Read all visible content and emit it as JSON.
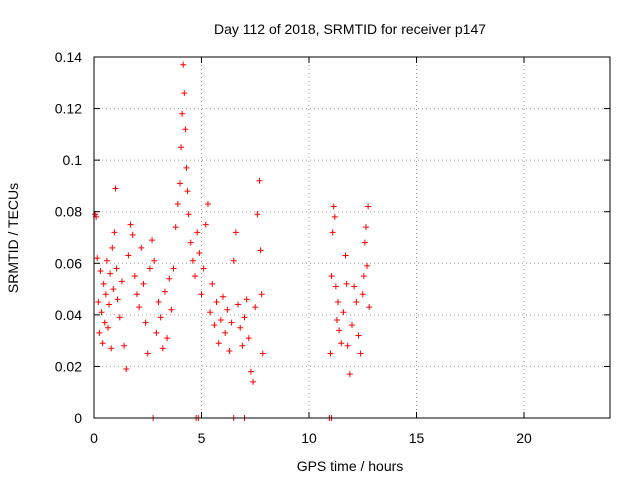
{
  "colors": {
    "series": "#ff0000",
    "grid": "#a0a0a0",
    "axis": "#000000"
  },
  "chart_data": {
    "type": "scatter",
    "title": "Day 112 of 2018, SRMTID for receiver p147",
    "xlabel": "GPS time / hours",
    "ylabel": "SRMTID / TECUs",
    "xlim": [
      0,
      24
    ],
    "ylim": [
      0,
      0.14
    ],
    "xticks": [
      0,
      5,
      10,
      15,
      20
    ],
    "xtick_labels": [
      "0",
      "5",
      "10",
      "15",
      "20"
    ],
    "yticks": [
      0,
      0.02,
      0.04,
      0.06,
      0.08,
      0.1,
      0.12,
      0.14
    ],
    "ytick_labels": [
      "0",
      "0.02",
      "0.04",
      "0.06",
      "0.08",
      "0.1",
      "0.12",
      "0.14"
    ],
    "grid": true,
    "marker": "plus",
    "series": [
      {
        "name": "SRMTID",
        "points": [
          [
            0.05,
            0.079
          ],
          [
            0.1,
            0.078
          ],
          [
            0.15,
            0.062
          ],
          [
            0.2,
            0.045
          ],
          [
            0.25,
            0.033
          ],
          [
            0.3,
            0.057
          ],
          [
            0.35,
            0.041
          ],
          [
            0.4,
            0.029
          ],
          [
            0.45,
            0.052
          ],
          [
            0.5,
            0.037
          ],
          [
            0.55,
            0.048
          ],
          [
            0.6,
            0.061
          ],
          [
            0.65,
            0.035
          ],
          [
            0.7,
            0.044
          ],
          [
            0.75,
            0.056
          ],
          [
            0.8,
            0.027
          ],
          [
            0.85,
            0.066
          ],
          [
            0.9,
            0.05
          ],
          [
            0.95,
            0.072
          ],
          [
            1.0,
            0.089
          ],
          [
            1.05,
            0.058
          ],
          [
            1.1,
            0.046
          ],
          [
            1.2,
            0.039
          ],
          [
            1.3,
            0.053
          ],
          [
            1.4,
            0.028
          ],
          [
            1.5,
            0.019
          ],
          [
            1.6,
            0.063
          ],
          [
            1.7,
            0.075
          ],
          [
            1.8,
            0.071
          ],
          [
            1.9,
            0.055
          ],
          [
            2.0,
            0.048
          ],
          [
            2.1,
            0.043
          ],
          [
            2.2,
            0.066
          ],
          [
            2.3,
            0.052
          ],
          [
            2.4,
            0.037
          ],
          [
            2.5,
            0.025
          ],
          [
            2.6,
            0.058
          ],
          [
            2.7,
            0.069
          ],
          [
            2.8,
            0.061
          ],
          [
            2.9,
            0.033
          ],
          [
            3.0,
            0.045
          ],
          [
            3.1,
            0.039
          ],
          [
            3.2,
            0.027
          ],
          [
            3.3,
            0.049
          ],
          [
            3.4,
            0.031
          ],
          [
            3.5,
            0.054
          ],
          [
            3.6,
            0.042
          ],
          [
            3.7,
            0.058
          ],
          [
            3.8,
            0.074
          ],
          [
            3.9,
            0.083
          ],
          [
            4.0,
            0.091
          ],
          [
            4.05,
            0.105
          ],
          [
            4.1,
            0.118
          ],
          [
            4.15,
            0.137
          ],
          [
            4.2,
            0.126
          ],
          [
            4.25,
            0.112
          ],
          [
            4.3,
            0.097
          ],
          [
            4.35,
            0.088
          ],
          [
            4.4,
            0.079
          ],
          [
            4.5,
            0.068
          ],
          [
            4.6,
            0.061
          ],
          [
            4.7,
            0.055
          ],
          [
            4.8,
            0.072
          ],
          [
            4.9,
            0.064
          ],
          [
            5.0,
            0.048
          ],
          [
            5.1,
            0.058
          ],
          [
            5.2,
            0.075
          ],
          [
            5.3,
            0.083
          ],
          [
            5.4,
            0.041
          ],
          [
            5.5,
            0.052
          ],
          [
            5.6,
            0.036
          ],
          [
            5.7,
            0.045
          ],
          [
            5.8,
            0.029
          ],
          [
            5.9,
            0.038
          ],
          [
            6.0,
            0.047
          ],
          [
            6.1,
            0.033
          ],
          [
            6.2,
            0.042
          ],
          [
            6.3,
            0.026
          ],
          [
            6.4,
            0.037
          ],
          [
            6.5,
            0.061
          ],
          [
            6.6,
            0.072
          ],
          [
            6.7,
            0.044
          ],
          [
            6.8,
            0.035
          ],
          [
            6.9,
            0.028
          ],
          [
            7.0,
            0.039
          ],
          [
            7.1,
            0.046
          ],
          [
            7.2,
            0.031
          ],
          [
            7.3,
            0.018
          ],
          [
            7.4,
            0.014
          ],
          [
            7.5,
            0.043
          ],
          [
            7.6,
            0.079
          ],
          [
            7.7,
            0.092
          ],
          [
            7.75,
            0.065
          ],
          [
            7.8,
            0.048
          ],
          [
            7.85,
            0.025
          ],
          [
            11.0,
            0.025
          ],
          [
            11.05,
            0.055
          ],
          [
            11.1,
            0.072
          ],
          [
            11.15,
            0.082
          ],
          [
            11.2,
            0.078
          ],
          [
            11.25,
            0.051
          ],
          [
            11.3,
            0.038
          ],
          [
            11.35,
            0.045
          ],
          [
            11.4,
            0.034
          ],
          [
            11.5,
            0.029
          ],
          [
            11.6,
            0.041
          ],
          [
            11.7,
            0.063
          ],
          [
            11.75,
            0.052
          ],
          [
            11.8,
            0.028
          ],
          [
            11.9,
            0.017
          ],
          [
            12.0,
            0.036
          ],
          [
            12.1,
            0.051
          ],
          [
            12.2,
            0.045
          ],
          [
            12.3,
            0.032
          ],
          [
            12.4,
            0.025
          ],
          [
            12.5,
            0.048
          ],
          [
            12.55,
            0.055
          ],
          [
            12.6,
            0.068
          ],
          [
            12.65,
            0.074
          ],
          [
            12.7,
            0.059
          ],
          [
            12.75,
            0.082
          ],
          [
            12.8,
            0.043
          ],
          [
            2.75,
            0
          ],
          [
            4.75,
            0
          ],
          [
            4.85,
            0
          ],
          [
            6.5,
            0
          ],
          [
            7.0,
            0
          ],
          [
            10.95,
            0
          ],
          [
            11.05,
            0
          ]
        ]
      }
    ]
  }
}
